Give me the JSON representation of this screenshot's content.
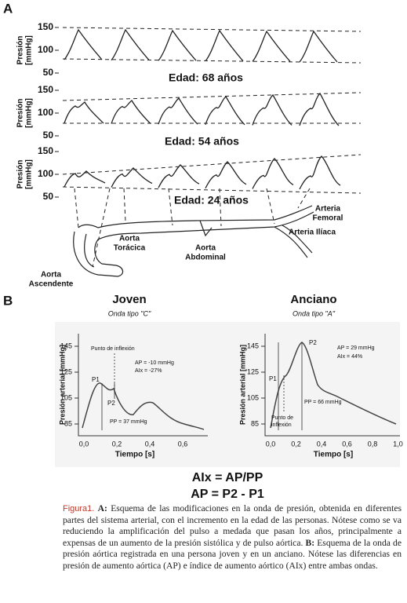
{
  "panel_a": {
    "label": "A",
    "strips": [
      {
        "y_label": [
          "Presión",
          "[mmHg]"
        ],
        "ticks": [
          150,
          100,
          50
        ],
        "age": "Edad: 68 años"
      },
      {
        "y_label": [
          "Presión",
          "[mmHg]"
        ],
        "ticks": [
          150,
          100,
          50
        ],
        "age": "Edad: 54 años"
      },
      {
        "y_label": [
          "Presión",
          "[mmHg]"
        ],
        "ticks": [
          150,
          100,
          50
        ],
        "age": "Edad: 24 años"
      }
    ],
    "sites": {
      "femoral": [
        "Arteria",
        "Femoral"
      ],
      "iliac": [
        "Arteria Ilíaca"
      ],
      "thoracic": [
        "Aorta",
        "Torácica"
      ],
      "abdominal": [
        "Aorta",
        "Abdominal"
      ],
      "ascending": [
        "Aorta",
        "Ascendente"
      ]
    }
  },
  "panel_b": {
    "label": "B",
    "young": {
      "title": "Joven",
      "subtitle": "Onda tipo \"C\"",
      "y_label": "Presión arterial [mmHg]",
      "x_label": "Tiempo [s]",
      "yticks": [
        145,
        125,
        105,
        85
      ],
      "xticks": [
        "0,0",
        "0,2",
        "0,4",
        "0,6"
      ],
      "inflection": "Punto de inflexión",
      "ap": "AP = -10 mmHg",
      "aix": "AIx = -27%",
      "p1": "P1",
      "p2": "P2",
      "pp": "PP = 37 mmHg"
    },
    "old": {
      "title": "Anciano",
      "subtitle": "Onda tipo \"A\"",
      "y_label": "Presión arterial [mmHg]",
      "x_label": "Tiempo [s]",
      "yticks": [
        145,
        125,
        105,
        85
      ],
      "xticks": [
        "0,0",
        "0,2",
        "0,4",
        "0,6",
        "0,8",
        "1,0"
      ],
      "inflection": [
        "Punto de",
        "inflexión"
      ],
      "ap": "AP = 29 mmHg",
      "aix": "AIx = 44%",
      "p1": "P1",
      "p2": "P2",
      "pp": "PP = 66 mmHg"
    },
    "formula_1": "AIx = AP/PP",
    "formula_2": "AP = P2 - P1"
  },
  "caption": {
    "figure": "Figura1.",
    "a_label": "A:",
    "a_text": "Esquema de las modificaciones en la onda de presión, obtenida en diferentes partes del sistema arterial, con el incremento en la edad de las personas. Nótese como se va reduciendo la amplificación del pulso a medada que pasan los años, principalmente a expensas de un aumento de la presión sistólica y de pulso aórtica.",
    "b_label": "B:",
    "b_text": "Esquema de la onda de presión aórtica registrada en una persona joven y en un anciano. Nótese las diferencias en presión de aumento aórtica (AP) e índice de aumento aórtico (AIx) entre ambas ondas."
  }
}
